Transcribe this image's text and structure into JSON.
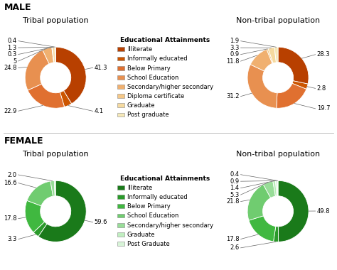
{
  "chart_data": [
    {
      "type": "pie",
      "title": "Tribal population",
      "annotations": [
        "MALE"
      ],
      "values": [
        41.3,
        4.1,
        22.9,
        24.8,
        5.0,
        0.3,
        1.3,
        0.4
      ],
      "value_labels": [
        "41.3",
        "4.1",
        "22.9",
        "24.8",
        "5",
        "0.3",
        "1.3",
        "0.4"
      ],
      "colors": [
        "#b84000",
        "#cc5500",
        "#e07030",
        "#e89050",
        "#f0b070",
        "#f5c888",
        "#f5daa0",
        "#f5e8b8"
      ],
      "data_labels": true
    },
    {
      "type": "legend",
      "title": "Educational Attainments",
      "series": [
        {
          "name": "Illiterate",
          "color": "#b84000"
        },
        {
          "name": "Informally educated",
          "color": "#cc5500"
        },
        {
          "name": "Below Primary",
          "color": "#e07030"
        },
        {
          "name": "School Education",
          "color": "#e89050"
        },
        {
          "name": "Secondary/higher secondary",
          "color": "#f0b070"
        },
        {
          "name": "Diploma certificate",
          "color": "#f5c888"
        },
        {
          "name": "Graduate",
          "color": "#f5daa0"
        },
        {
          "name": "Post graduate",
          "color": "#f5e8b8"
        }
      ]
    },
    {
      "type": "pie",
      "title": "Non-tribal population",
      "values": [
        28.3,
        2.8,
        19.7,
        31.2,
        11.8,
        0.9,
        3.3,
        1.9
      ],
      "value_labels": [
        "28.3",
        "2.8",
        "19.7",
        "31.2",
        "11.8",
        "0.9",
        "3.3",
        "1.9"
      ],
      "colors": [
        "#b84000",
        "#cc5500",
        "#e07030",
        "#e89050",
        "#f0b070",
        "#f5c888",
        "#f5daa0",
        "#f5e8b8"
      ],
      "data_labels": true
    },
    {
      "type": "pie",
      "title": "Tribal population",
      "annotations": [
        "FEMALE"
      ],
      "values": [
        59.6,
        3.3,
        17.8,
        16.6,
        2.0,
        0.7
      ],
      "value_labels": [
        "59.6",
        "3.3",
        "17.8",
        "16.6",
        "2.0",
        null
      ],
      "colors": [
        "#1a7a1a",
        "#2a9a2a",
        "#40b840",
        "#70cc70",
        "#98dd98",
        "#c0eec0"
      ],
      "data_labels": true
    },
    {
      "type": "legend",
      "title": "Educational Attainments",
      "series": [
        {
          "name": "Illiterate",
          "color": "#1a7a1a"
        },
        {
          "name": "Informally educated",
          "color": "#2a9a2a"
        },
        {
          "name": "Below Primary",
          "color": "#40b840"
        },
        {
          "name": "School Education",
          "color": "#70cc70"
        },
        {
          "name": "Secondary/higher secondary",
          "color": "#98dd98"
        },
        {
          "name": "Graduate",
          "color": "#c0eec0"
        },
        {
          "name": "Post Graduate",
          "color": "#d8f4d8"
        }
      ]
    },
    {
      "type": "pie",
      "title": "Non-tribal population",
      "values": [
        49.8,
        2.6,
        17.8,
        21.8,
        5.3,
        1.4,
        0.9,
        0.4
      ],
      "value_labels": [
        "49.8",
        "2.6",
        "17.8",
        "21.8",
        "5.3",
        "1.4",
        "0.9",
        "0.4"
      ],
      "colors": [
        "#1a7a1a",
        "#2a9a2a",
        "#40b840",
        "#70cc70",
        "#98dd98",
        "#b8eeb8",
        "#d0f4d0",
        "#e4f8e4"
      ],
      "data_labels": true
    }
  ]
}
